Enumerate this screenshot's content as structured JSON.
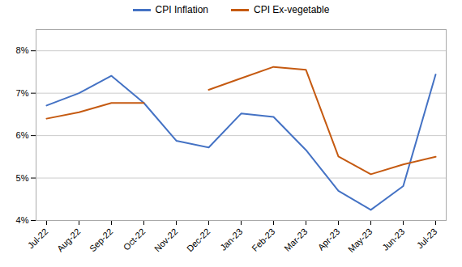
{
  "chart_data": {
    "type": "line",
    "categories": [
      "Jul-22",
      "Aug-22",
      "Sep-22",
      "Oct-22",
      "Nov-22",
      "Dec-22",
      "Jan-23",
      "Feb-23",
      "Mar-23",
      "Apr-23",
      "May-23",
      "Jun-23",
      "Jul-23"
    ],
    "series": [
      {
        "name": "CPI Inflation",
        "color": "#4472C4",
        "values": [
          6.71,
          7.0,
          7.41,
          6.77,
          5.88,
          5.72,
          6.52,
          6.44,
          5.66,
          4.7,
          4.25,
          4.81,
          7.44
        ]
      },
      {
        "name": "CPI Ex-vegetable",
        "color": "#C55A11",
        "values": [
          6.4,
          6.55,
          6.77,
          6.77,
          null,
          7.08,
          7.35,
          7.62,
          7.55,
          5.51,
          5.09,
          5.32,
          5.5
        ]
      }
    ],
    "ylim": [
      4.0,
      8.5
    ],
    "yticks": [
      {
        "value": 4.0,
        "label": "4%"
      },
      {
        "value": 5.0,
        "label": "5%"
      },
      {
        "value": 6.0,
        "label": "6%"
      },
      {
        "value": 7.0,
        "label": "7%"
      },
      {
        "value": 8.0,
        "label": "8%"
      }
    ],
    "grid": true,
    "legend": "top"
  }
}
